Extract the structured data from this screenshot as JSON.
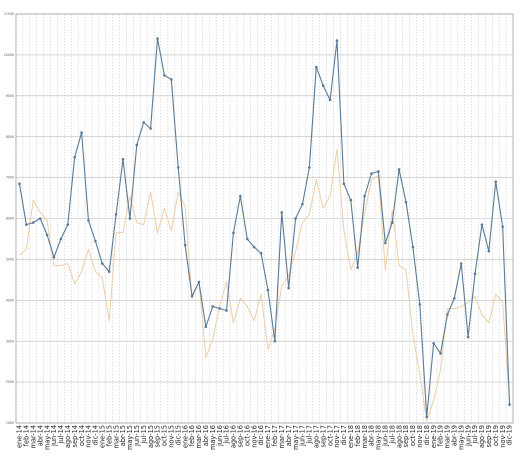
{
  "chart_data": {
    "type": "line",
    "title": "",
    "xlabel": "",
    "ylabel": "",
    "ylim": [
      1000,
      11000
    ],
    "yticks": [
      1000,
      2000,
      3000,
      4000,
      5000,
      6000,
      7000,
      8000,
      9000,
      10000,
      11000
    ],
    "grid": true,
    "legend": "none",
    "categories": [
      "ene-14",
      "feb-14",
      "mar-14",
      "abr-14",
      "may-14",
      "jun-14",
      "jul-14",
      "ago-14",
      "sep-14",
      "oct-14",
      "nov-14",
      "dic-14",
      "ene-15",
      "feb-15",
      "mar-15",
      "abr-15",
      "may-15",
      "jun-15",
      "jul-15",
      "ago-15",
      "sep-15",
      "oct-15",
      "nov-15",
      "dic-15",
      "ene-16",
      "feb-16",
      "mar-16",
      "abr-16",
      "may-16",
      "jun-16",
      "jul-16",
      "ago-16",
      "sep-16",
      "oct-16",
      "nov-16",
      "dic-16",
      "ene-17",
      "feb-17",
      "mar-17",
      "abr-17",
      "may-17",
      "jun-17",
      "jul-17",
      "ago-17",
      "sep-17",
      "oct-17",
      "nov-17",
      "dic-17",
      "ene-18",
      "feb-18",
      "mar-18",
      "abr-18",
      "may-18",
      "jun-18",
      "jul-18",
      "ago-18",
      "sep-18",
      "oct-18",
      "nov-18",
      "dic-18",
      "ene-19",
      "feb-19",
      "mar-19",
      "abr-19",
      "may-19",
      "jun-19",
      "jul-19",
      "ago-19",
      "sep-19",
      "oct-19",
      "nov-19",
      "dic-19"
    ],
    "series": [
      {
        "color": "#5a7a96",
        "markers": true,
        "values": [
          6850,
          5850,
          5900,
          6000,
          5600,
          5050,
          5500,
          5850,
          7500,
          8100,
          5950,
          5450,
          4900,
          4700,
          6100,
          7450,
          6000,
          7800,
          8350,
          8200,
          10400,
          9500,
          9400,
          7250,
          5350,
          4100,
          4450,
          3350,
          3850,
          3800,
          3750,
          5650,
          6550,
          5500,
          5300,
          5150,
          4250,
          3000,
          6150,
          4300,
          6000,
          6350,
          7250,
          9700,
          9250,
          8900,
          10350,
          6850,
          6450,
          4800,
          6550,
          7100,
          7150,
          5400,
          5900,
          7200,
          6400,
          5300,
          3900,
          1150,
          2950,
          2700,
          3650,
          4050,
          4900,
          3100,
          4650,
          5850,
          5200,
          6900,
          5800,
          1450
        ]
      },
      {
        "color": "#eccfa8",
        "markers": false,
        "values": [
          5100,
          5250,
          6450,
          6150,
          5950,
          4850,
          4850,
          4900,
          4400,
          4700,
          5250,
          4700,
          4550,
          3500,
          5650,
          5650,
          6550,
          5900,
          5850,
          6650,
          5650,
          6250,
          5700,
          6650,
          6300,
          4050,
          4450,
          2600,
          3050,
          3850,
          4450,
          3450,
          4050,
          3850,
          3500,
          4150,
          2800,
          3300,
          4350,
          4600,
          5200,
          5900,
          6100,
          6950,
          6250,
          6550,
          7700,
          5700,
          4750,
          5150,
          6150,
          6950,
          7050,
          4750,
          6200,
          4850,
          4750,
          3150,
          2200,
          1050,
          1550,
          2300,
          3800,
          3800,
          3850,
          3950,
          4100,
          3650,
          3450,
          4150,
          3950,
          1500
        ]
      }
    ]
  }
}
